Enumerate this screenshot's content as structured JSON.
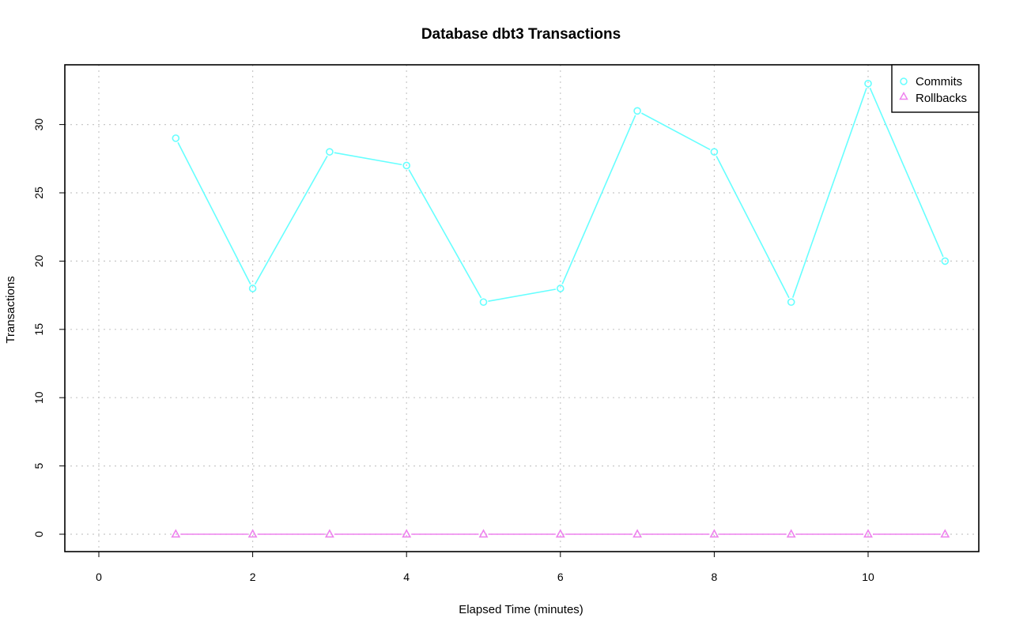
{
  "chart_data": {
    "type": "line",
    "title": "Database dbt3 Transactions",
    "xlabel": "Elapsed Time (minutes)",
    "ylabel": "Transactions",
    "x": [
      1,
      2,
      3,
      4,
      5,
      6,
      7,
      8,
      9,
      10,
      11
    ],
    "xlim": [
      0,
      11
    ],
    "ylim": [
      0,
      33
    ],
    "x_ticks": [
      "0",
      "2",
      "4",
      "6",
      "8",
      "10"
    ],
    "y_ticks": [
      "0",
      "5",
      "10",
      "15",
      "20",
      "25",
      "30"
    ],
    "grid": true,
    "legend_position": "top-right",
    "series": [
      {
        "name": "Commits",
        "values": [
          29,
          18,
          28,
          27,
          17,
          18,
          31,
          28,
          17,
          33,
          20
        ],
        "color": "#66FFFF",
        "marker": "circle"
      },
      {
        "name": "Rollbacks",
        "values": [
          0,
          0,
          0,
          0,
          0,
          0,
          0,
          0,
          0,
          0,
          0
        ],
        "color": "#EE82EE",
        "marker": "triangle"
      }
    ]
  }
}
